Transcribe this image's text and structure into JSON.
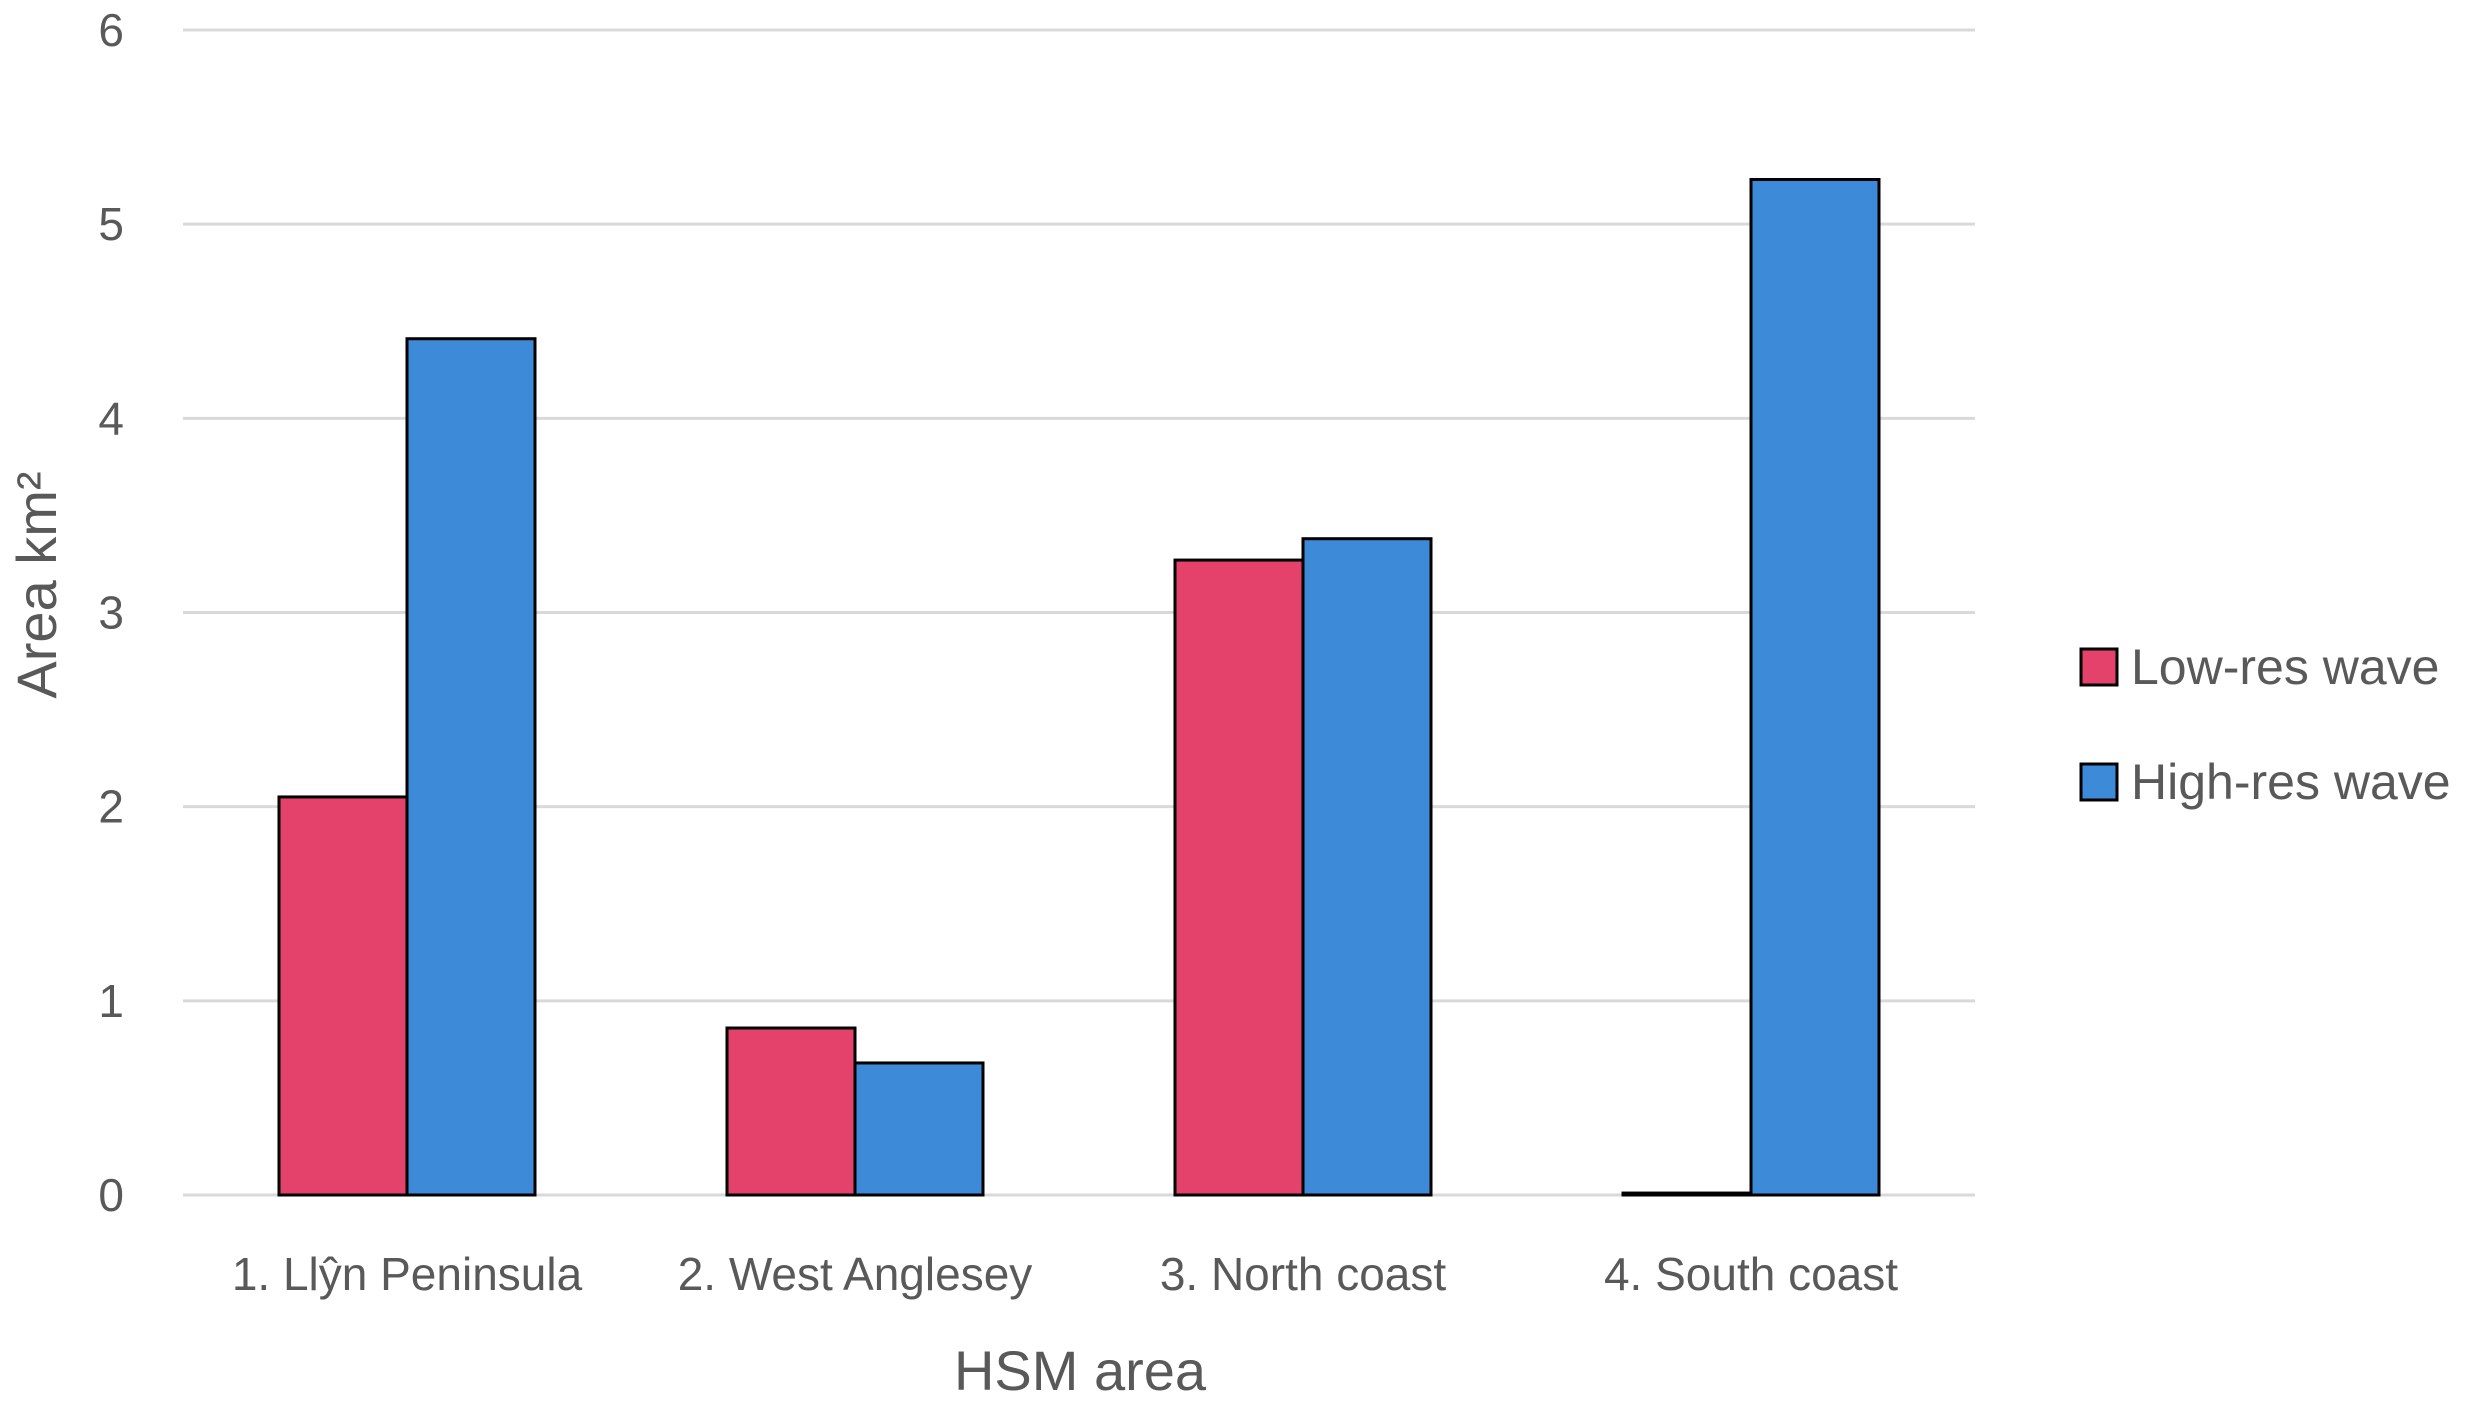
{
  "chart_data": {
    "type": "bar",
    "title": "",
    "xlabel": "HSM area",
    "ylabel": "Area km²",
    "ylim": [
      0,
      6
    ],
    "yticks": [
      0,
      1,
      2,
      3,
      4,
      5,
      6
    ],
    "grid": true,
    "legend_position": "right",
    "categories": [
      "1. Llŷn Peninsula",
      "2. West Anglesey",
      "3. North coast",
      "4. South coast"
    ],
    "series": [
      {
        "name": "Low-res wave",
        "color": "#e5426b",
        "values": [
          2.05,
          0.86,
          3.27,
          0.01
        ]
      },
      {
        "name": "High-res wave",
        "color": "#3d8ad8",
        "values": [
          4.41,
          0.68,
          3.38,
          5.23
        ]
      }
    ]
  }
}
